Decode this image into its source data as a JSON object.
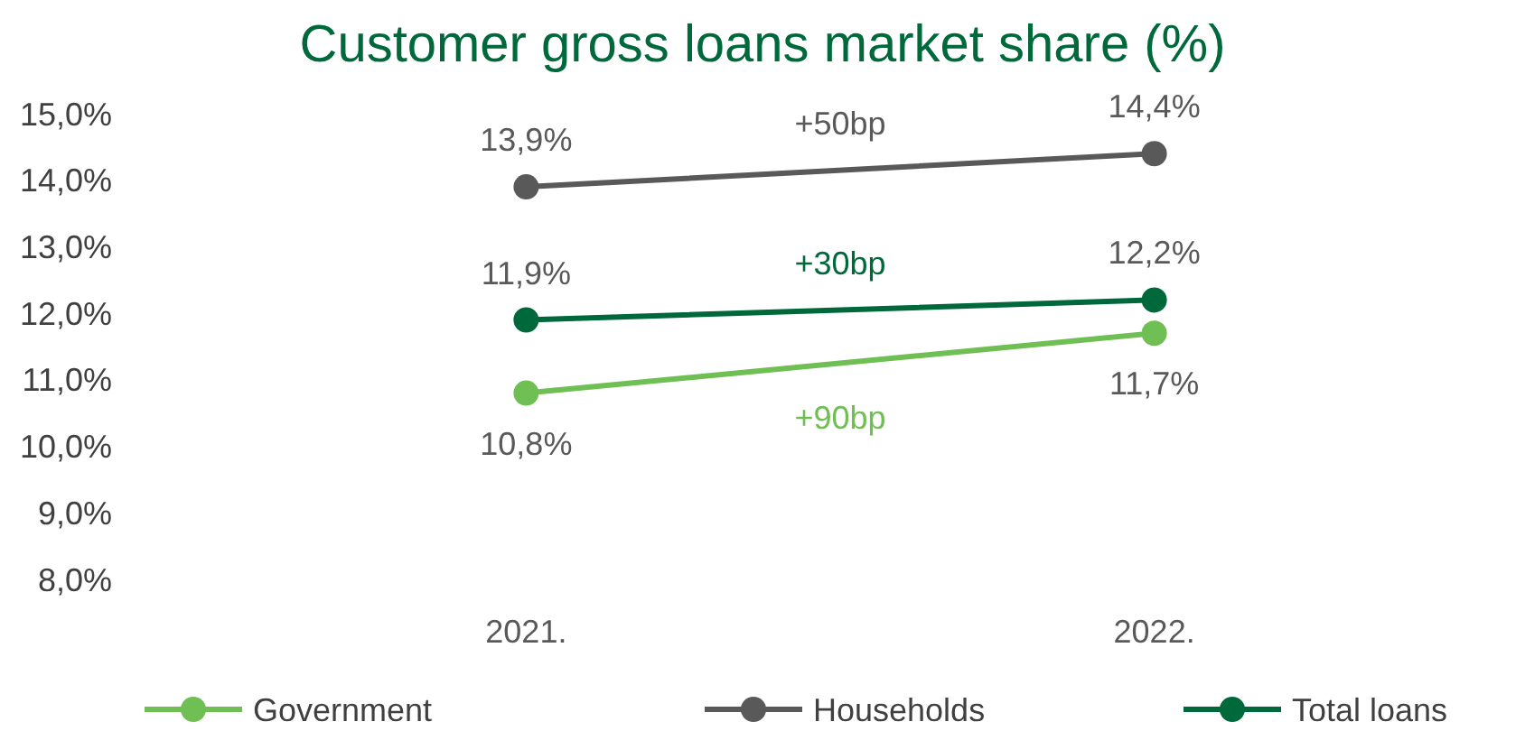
{
  "chart_data": {
    "type": "line",
    "title": "Customer gross loans market share (%)",
    "categories": [
      "2021.",
      "2022."
    ],
    "series": [
      {
        "name": "Government",
        "color": "#70bf54",
        "values": [
          10.8,
          11.7
        ],
        "value_labels": [
          "10,8%",
          "11,7%"
        ]
      },
      {
        "name": "Households",
        "color": "#595959",
        "values": [
          13.9,
          14.4
        ],
        "value_labels": [
          "13,9%",
          "14,4%"
        ]
      },
      {
        "name": "Total loans",
        "color": "#00693c",
        "values": [
          11.9,
          12.2
        ],
        "value_labels": [
          "11,9%",
          "12,2%"
        ]
      }
    ],
    "ylim": [
      8,
      15
    ],
    "yticks": [
      {
        "value": 8,
        "label": "8,0%"
      },
      {
        "value": 9,
        "label": "9,0%"
      },
      {
        "value": 10,
        "label": "10,0%"
      },
      {
        "value": 11,
        "label": "11,0%"
      },
      {
        "value": 12,
        "label": "12,0%"
      },
      {
        "value": 13,
        "label": "13,0%"
      },
      {
        "value": 14,
        "label": "14,0%"
      },
      {
        "value": 15,
        "label": "15,0%"
      }
    ],
    "annotations": [
      "+90bp",
      "+50bp",
      "+30bp"
    ],
    "grid": false,
    "legend": "bottom",
    "marker": "circle",
    "line_style": "solid"
  }
}
